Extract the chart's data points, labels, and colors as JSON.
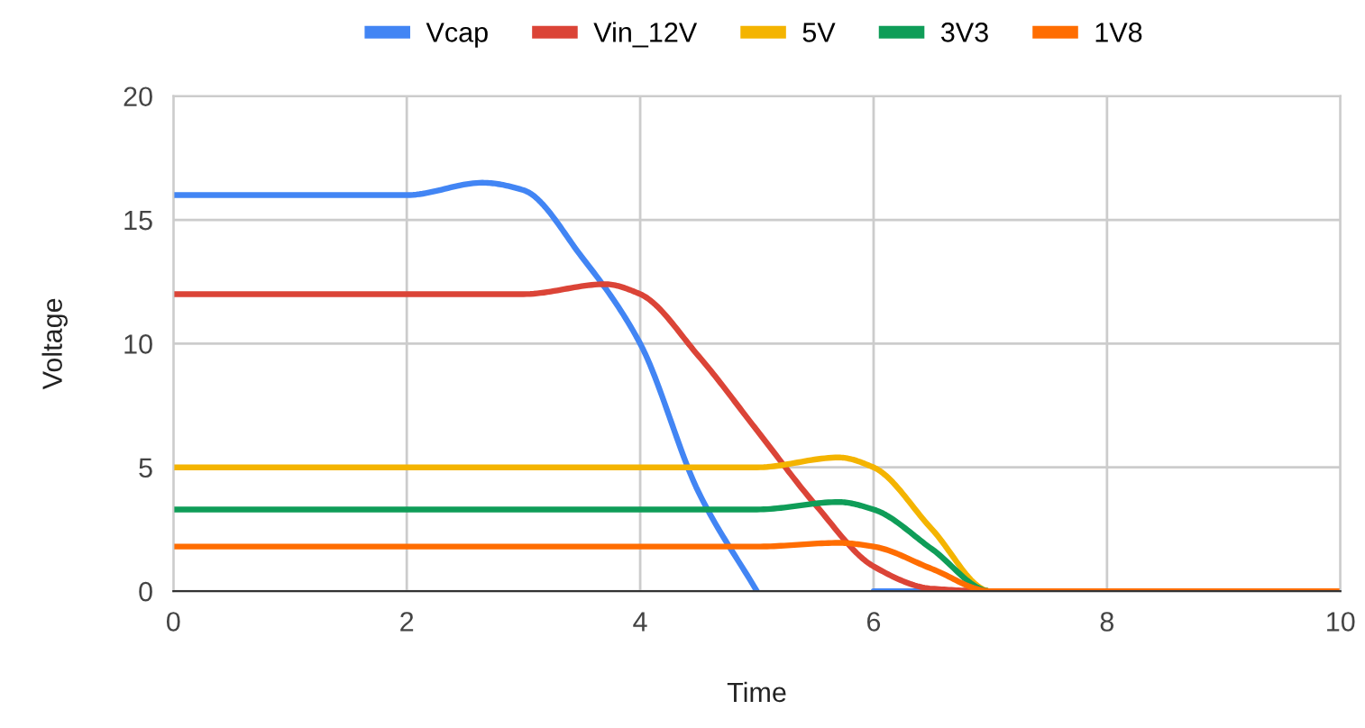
{
  "chart_data": {
    "type": "line",
    "xlabel": "Time",
    "ylabel": "Voltage",
    "series": [
      {
        "name": "Vcap",
        "color": "#4285f4",
        "x": [
          0,
          2,
          2.65,
          3,
          3.5,
          4,
          4.5,
          5,
          5.5,
          6,
          7
        ],
        "values": [
          16,
          16,
          16.5,
          16.2,
          13.5,
          10,
          4,
          0,
          null,
          0,
          0
        ]
      },
      {
        "name": "Vin_12V",
        "color": "#db4437",
        "x": [
          0,
          3,
          3.7,
          4,
          4.5,
          5,
          5.5,
          6,
          6.5,
          7,
          8
        ],
        "values": [
          12,
          12,
          12.4,
          12,
          9.5,
          6.5,
          3.5,
          1,
          0.1,
          0,
          0
        ]
      },
      {
        "name": "5V",
        "color": "#f4b400",
        "x": [
          0,
          5,
          5.7,
          6,
          6.5,
          7,
          8
        ],
        "values": [
          5,
          5,
          5.4,
          5,
          2.5,
          0,
          0
        ]
      },
      {
        "name": "3V3",
        "color": "#0f9d58",
        "x": [
          0,
          5,
          5.7,
          6,
          6.5,
          7,
          8
        ],
        "values": [
          3.3,
          3.3,
          3.6,
          3.3,
          1.7,
          0,
          0
        ]
      },
      {
        "name": "1V8",
        "color": "#ff6d01",
        "x": [
          0,
          5,
          5.7,
          6,
          6.5,
          7,
          8,
          9,
          10
        ],
        "values": [
          1.8,
          1.8,
          1.95,
          1.8,
          0.9,
          0,
          0,
          0,
          0
        ]
      }
    ],
    "xlim": [
      0,
      10
    ],
    "xticks": [
      0,
      2,
      4,
      6,
      8,
      10
    ],
    "ylim": [
      0,
      20
    ],
    "yticks": [
      0,
      5,
      10,
      15,
      20
    ],
    "grid": true,
    "legend": "top",
    "marker": "none",
    "line_style": "solid"
  }
}
